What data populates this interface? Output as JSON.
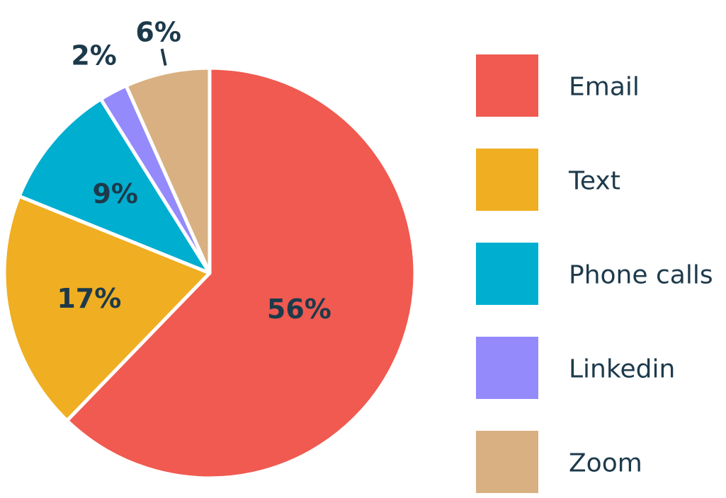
{
  "chart_data": {
    "type": "pie",
    "categories": [
      "Email",
      "Text",
      "Phone calls",
      "Linkedin",
      "Zoom"
    ],
    "values": [
      56,
      17,
      9,
      2,
      6
    ],
    "value_labels": [
      "56%",
      "17%",
      "9%",
      "2%",
      "6%"
    ],
    "colors": [
      "#f05a50",
      "#f0ae22",
      "#00aed0",
      "#948afc",
      "#d8b082"
    ],
    "legend": "right"
  }
}
